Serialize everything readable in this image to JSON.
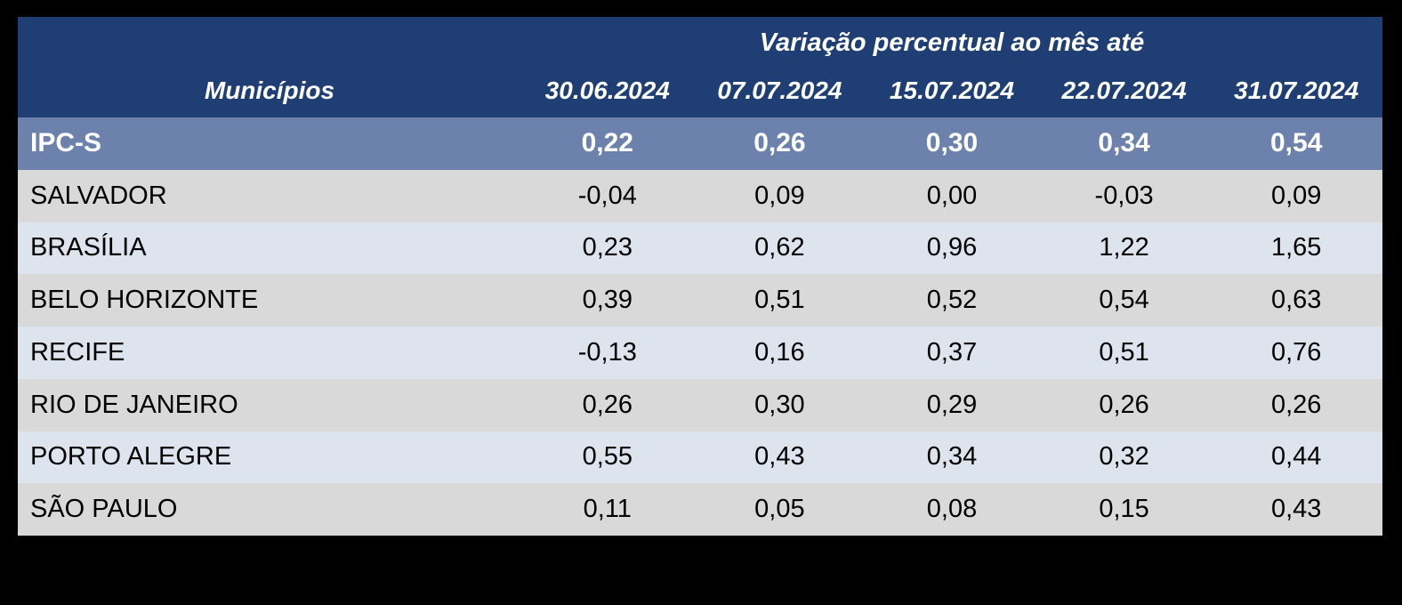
{
  "page": {
    "background": "#000000"
  },
  "table": {
    "title": "Variação percentual ao mês até",
    "municipios_header": "Municípios",
    "date_headers": [
      "30.06.2024",
      "07.07.2024",
      "15.07.2024",
      "22.07.2024",
      "31.07.2024"
    ],
    "highlight_row": {
      "label": "IPC-S",
      "values": [
        "0,22",
        "0,26",
        "0,30",
        "0,34",
        "0,54"
      ]
    },
    "rows": [
      {
        "label": "SALVADOR",
        "values": [
          "-0,04",
          "0,09",
          "0,00",
          "-0,03",
          "0,09"
        ]
      },
      {
        "label": "BRASÍLIA",
        "values": [
          "0,23",
          "0,62",
          "0,96",
          "1,22",
          "1,65"
        ]
      },
      {
        "label": "BELO HORIZONTE",
        "values": [
          "0,39",
          "0,51",
          "0,52",
          "0,54",
          "0,63"
        ]
      },
      {
        "label": "RECIFE",
        "values": [
          "-0,13",
          "0,16",
          "0,37",
          "0,51",
          "0,76"
        ]
      },
      {
        "label": "RIO DE JANEIRO",
        "values": [
          "0,26",
          "0,30",
          "0,29",
          "0,26",
          "0,26"
        ]
      },
      {
        "label": "PORTO ALEGRE",
        "values": [
          "0,55",
          "0,43",
          "0,34",
          "0,32",
          "0,44"
        ]
      },
      {
        "label": "SÃO PAULO",
        "values": [
          "0,11",
          "0,05",
          "0,08",
          "0,15",
          "0,43"
        ]
      }
    ],
    "colors": {
      "header_bg": "#1F3E73",
      "highlight_bg": "#6C82AD",
      "row_gray": "#D9D9D9",
      "row_blue": "#DEE4EE",
      "header_text": "#FFFFFF",
      "body_text": "#000000"
    }
  },
  "chart_data": {
    "type": "table",
    "title": "Variação percentual ao mês até",
    "row_label_header": "Municípios",
    "categories": [
      "30.06.2024",
      "07.07.2024",
      "15.07.2024",
      "22.07.2024",
      "31.07.2024"
    ],
    "series": [
      {
        "name": "IPC-S",
        "values": [
          0.22,
          0.26,
          0.3,
          0.34,
          0.54
        ]
      },
      {
        "name": "SALVADOR",
        "values": [
          -0.04,
          0.09,
          0.0,
          -0.03,
          0.09
        ]
      },
      {
        "name": "BRASÍLIA",
        "values": [
          0.23,
          0.62,
          0.96,
          1.22,
          1.65
        ]
      },
      {
        "name": "BELO HORIZONTE",
        "values": [
          0.39,
          0.51,
          0.52,
          0.54,
          0.63
        ]
      },
      {
        "name": "RECIFE",
        "values": [
          -0.13,
          0.16,
          0.37,
          0.51,
          0.76
        ]
      },
      {
        "name": "RIO DE JANEIRO",
        "values": [
          0.26,
          0.3,
          0.29,
          0.26,
          0.26
        ]
      },
      {
        "name": "PORTO ALEGRE",
        "values": [
          0.55,
          0.43,
          0.34,
          0.32,
          0.44
        ]
      },
      {
        "name": "SÃO PAULO",
        "values": [
          0.11,
          0.05,
          0.08,
          0.15,
          0.43
        ]
      }
    ],
    "layout": {
      "unit": "percent",
      "decimal_separator": "comma",
      "gridlines": false,
      "highlighted_series": "IPC-S"
    }
  }
}
